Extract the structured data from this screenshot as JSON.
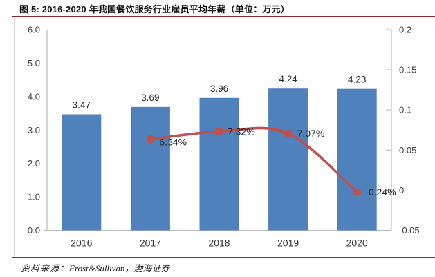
{
  "title": "图 5:  2016-2020 年我国餐饮服务行业雇员平均年薪（单位：万元）",
  "footer": {
    "source_label": "资料来源：",
    "source_text": "Frost&Sullivan，渤海证券"
  },
  "colors": {
    "bar": "#4F81BD",
    "line": "#C0504D",
    "rule": "#912727",
    "axis_line": "#BFBFBF",
    "axis_text": "#3B3B3B",
    "label_text": "#262626"
  },
  "chart_data": {
    "type": "bar",
    "title": "2016-2020 年我国餐饮服务行业雇员平均年薪（单位：万元）",
    "categories": [
      "2016",
      "2017",
      "2018",
      "2019",
      "2020"
    ],
    "series": [
      {
        "type": "bar",
        "axis": "left",
        "values": [
          3.47,
          3.69,
          3.96,
          4.24,
          4.23
        ],
        "labels": [
          "3.47",
          "3.69",
          "3.96",
          "4.24",
          "4.23"
        ]
      },
      {
        "type": "line",
        "axis": "right",
        "values": [
          null,
          0.0634,
          0.0732,
          0.0707,
          -0.0024
        ],
        "labels": [
          null,
          "6.34%",
          "7.32%",
          "7.07%",
          "-0.24%"
        ]
      }
    ],
    "left_axis": {
      "min": 0,
      "max": 6.0,
      "tick_labels": [
        "6.0",
        "5.0",
        "4.0",
        "3.0",
        "2.0",
        "1.0",
        "0.0"
      ]
    },
    "right_axis": {
      "min": -0.05,
      "max": 0.2,
      "tick_labels": [
        "0.2",
        "0.15",
        "0.1",
        "0.05",
        "0",
        "-0.05"
      ]
    },
    "grid": false,
    "legend": "none",
    "xlabel": "",
    "ylabel": ""
  }
}
